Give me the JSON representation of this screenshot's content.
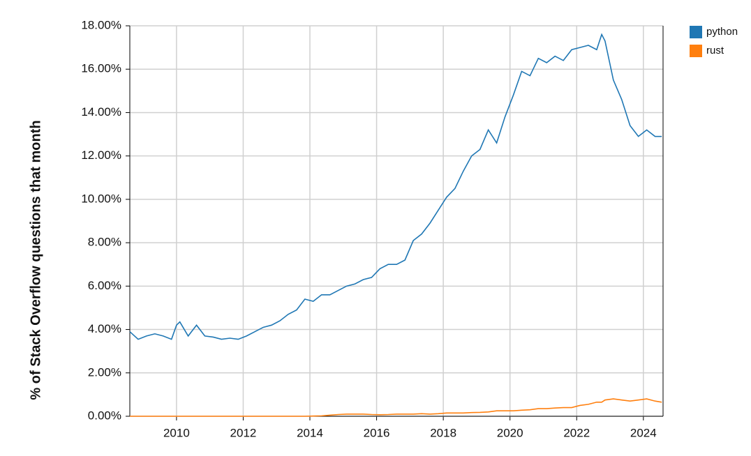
{
  "chart_data": {
    "type": "line",
    "y_label": "% of Stack Overflow questions that month",
    "x": [
      2008.6,
      2008.85,
      2009.1,
      2009.35,
      2009.6,
      2009.85,
      2010.0,
      2010.1,
      2010.35,
      2010.6,
      2010.85,
      2011.1,
      2011.35,
      2011.6,
      2011.85,
      2012.1,
      2012.35,
      2012.6,
      2012.85,
      2013.1,
      2013.35,
      2013.6,
      2013.85,
      2014.1,
      2014.35,
      2014.6,
      2014.85,
      2015.1,
      2015.35,
      2015.6,
      2015.85,
      2016.1,
      2016.35,
      2016.6,
      2016.85,
      2017.1,
      2017.35,
      2017.6,
      2017.85,
      2018.1,
      2018.35,
      2018.6,
      2018.85,
      2019.1,
      2019.35,
      2019.6,
      2019.85,
      2020.1,
      2020.35,
      2020.6,
      2020.85,
      2021.1,
      2021.35,
      2021.6,
      2021.85,
      2022.1,
      2022.35,
      2022.6,
      2022.75,
      2022.85,
      2023.1,
      2023.35,
      2023.6,
      2023.85,
      2024.1,
      2024.35,
      2024.55
    ],
    "series": [
      {
        "name": "python",
        "color": "#1f77b4",
        "values": [
          3.9,
          3.55,
          3.7,
          3.8,
          3.7,
          3.55,
          4.2,
          4.35,
          3.7,
          4.2,
          3.7,
          3.65,
          3.55,
          3.6,
          3.55,
          3.7,
          3.9,
          4.1,
          4.2,
          4.4,
          4.7,
          4.9,
          5.4,
          5.3,
          5.6,
          5.6,
          5.8,
          6.0,
          6.1,
          6.3,
          6.4,
          6.8,
          7.0,
          7.0,
          7.2,
          8.1,
          8.4,
          8.9,
          9.5,
          10.1,
          10.5,
          11.3,
          12.0,
          12.3,
          13.2,
          12.6,
          13.8,
          14.8,
          15.9,
          15.7,
          16.5,
          16.3,
          16.6,
          16.4,
          16.9,
          17.0,
          17.1,
          16.9,
          17.6,
          17.3,
          15.5,
          14.6,
          13.4,
          12.9,
          13.2,
          12.9,
          12.9
        ]
      },
      {
        "name": "rust",
        "color": "#ff7f0e",
        "values": [
          0,
          0,
          0,
          0,
          0,
          0,
          0,
          0,
          0,
          0,
          0,
          0,
          0,
          0,
          0,
          0,
          0,
          0,
          0,
          0,
          0,
          0,
          0,
          0.01,
          0.02,
          0.05,
          0.08,
          0.1,
          0.1,
          0.1,
          0.08,
          0.07,
          0.08,
          0.1,
          0.1,
          0.1,
          0.12,
          0.1,
          0.12,
          0.15,
          0.15,
          0.15,
          0.17,
          0.18,
          0.2,
          0.25,
          0.25,
          0.25,
          0.28,
          0.3,
          0.35,
          0.35,
          0.38,
          0.4,
          0.4,
          0.5,
          0.55,
          0.65,
          0.65,
          0.75,
          0.8,
          0.75,
          0.7,
          0.75,
          0.8,
          0.7,
          0.65
        ]
      }
    ],
    "xlim": [
      2008.6,
      2024.59
    ],
    "xticks": [
      2010,
      2012,
      2014,
      2016,
      2018,
      2020,
      2022,
      2024
    ],
    "ylim": [
      0,
      18
    ],
    "yticks": [
      {
        "value": 0,
        "label": "0.00%"
      },
      {
        "value": 2,
        "label": "2.00%"
      },
      {
        "value": 4,
        "label": "4.00%"
      },
      {
        "value": 6,
        "label": "6.00%"
      },
      {
        "value": 8,
        "label": "8.00%"
      },
      {
        "value": 10,
        "label": "10.00%"
      },
      {
        "value": 12,
        "label": "12.00%"
      },
      {
        "value": 14,
        "label": "14.00%"
      },
      {
        "value": 16,
        "label": "16.00%"
      },
      {
        "value": 18,
        "label": "18.00%"
      }
    ],
    "grid": true,
    "legend": "top-right"
  }
}
